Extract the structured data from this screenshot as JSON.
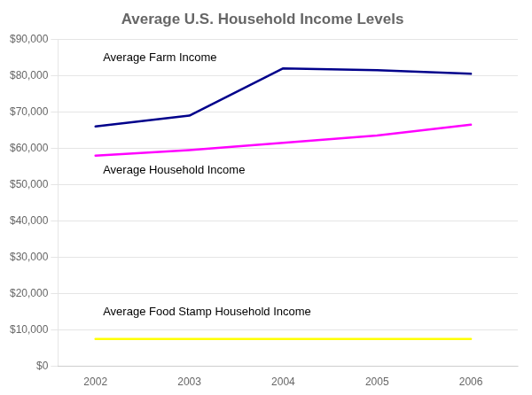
{
  "chart_data": {
    "type": "line",
    "title": "Average U.S. Household Income Levels",
    "x": [
      2002,
      2003,
      2004,
      2005,
      2006
    ],
    "series": [
      {
        "color": "#00008B",
        "values": [
          66000,
          69000,
          82000,
          81500,
          80500
        ]
      },
      {
        "color": "#FF00FF",
        "values": [
          58000,
          59500,
          61500,
          63500,
          66500
        ]
      },
      {
        "color": "#FFFF00",
        "values": [
          7500,
          7500,
          7500,
          7500,
          7500
        ]
      }
    ],
    "annotations": [
      {
        "text": "Average Farm Income",
        "x": 2002.08,
        "y": 84000
      },
      {
        "text": "Average Household Income",
        "x": 2002.08,
        "y": 53000
      },
      {
        "text": "Average Food Stamp Household Income",
        "x": 2002.08,
        "y": 14000
      }
    ],
    "xlim": [
      2001.6,
      2006.5
    ],
    "xticks": [
      2002,
      2003,
      2004,
      2005,
      2006
    ],
    "ylim": [
      0,
      90000
    ],
    "yticks": [
      {
        "value": 0,
        "label": "$0"
      },
      {
        "value": 10000,
        "label": "$10,000"
      },
      {
        "value": 20000,
        "label": "$20,000"
      },
      {
        "value": 30000,
        "label": "$30,000"
      },
      {
        "value": 40000,
        "label": "$40,000"
      },
      {
        "value": 50000,
        "label": "$50,000"
      },
      {
        "value": 60000,
        "label": "$60,000"
      },
      {
        "value": 70000,
        "label": "$70,000"
      },
      {
        "value": 80000,
        "label": "$80,000"
      },
      {
        "value": 90000,
        "label": "$90,000"
      }
    ],
    "grid": true
  }
}
